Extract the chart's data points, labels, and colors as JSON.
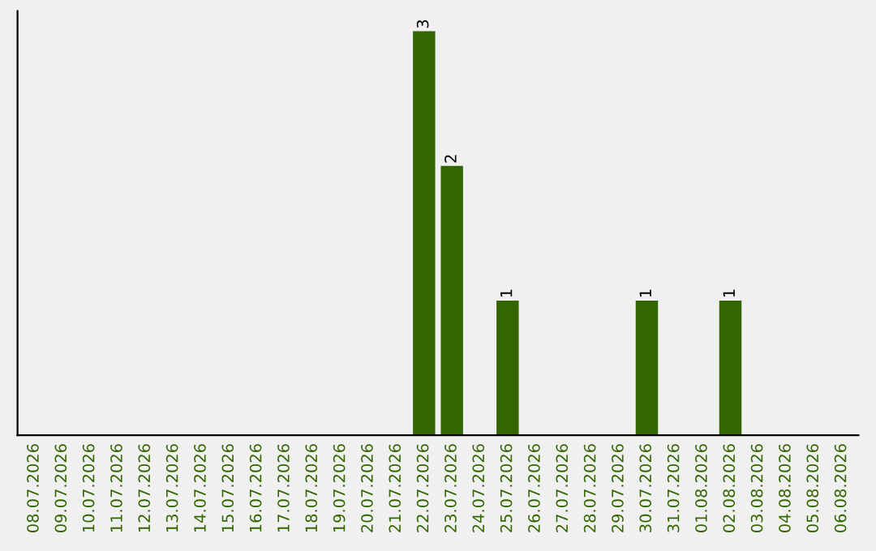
{
  "chart_data": {
    "type": "bar",
    "categories": [
      "08.07.2026",
      "09.07.2026",
      "10.07.2026",
      "11.07.2026",
      "12.07.2026",
      "13.07.2026",
      "14.07.2026",
      "15.07.2026",
      "16.07.2026",
      "17.07.2026",
      "18.07.2026",
      "19.07.2026",
      "20.07.2026",
      "21.07.2026",
      "22.07.2026",
      "23.07.2026",
      "24.07.2026",
      "25.07.2026",
      "26.07.2026",
      "27.07.2026",
      "28.07.2026",
      "29.07.2026",
      "30.07.2026",
      "31.07.2026",
      "01.08.2026",
      "02.08.2026",
      "03.08.2026",
      "04.08.2026",
      "05.08.2026",
      "06.08.2026"
    ],
    "values": [
      null,
      null,
      null,
      null,
      null,
      null,
      null,
      null,
      null,
      null,
      null,
      null,
      null,
      null,
      3,
      2,
      null,
      1,
      null,
      null,
      null,
      null,
      1,
      null,
      null,
      1,
      null,
      null,
      null,
      null
    ],
    "data_labels": true,
    "color": "#336600",
    "tick_labels": "x",
    "grid": false,
    "legend": false
  }
}
